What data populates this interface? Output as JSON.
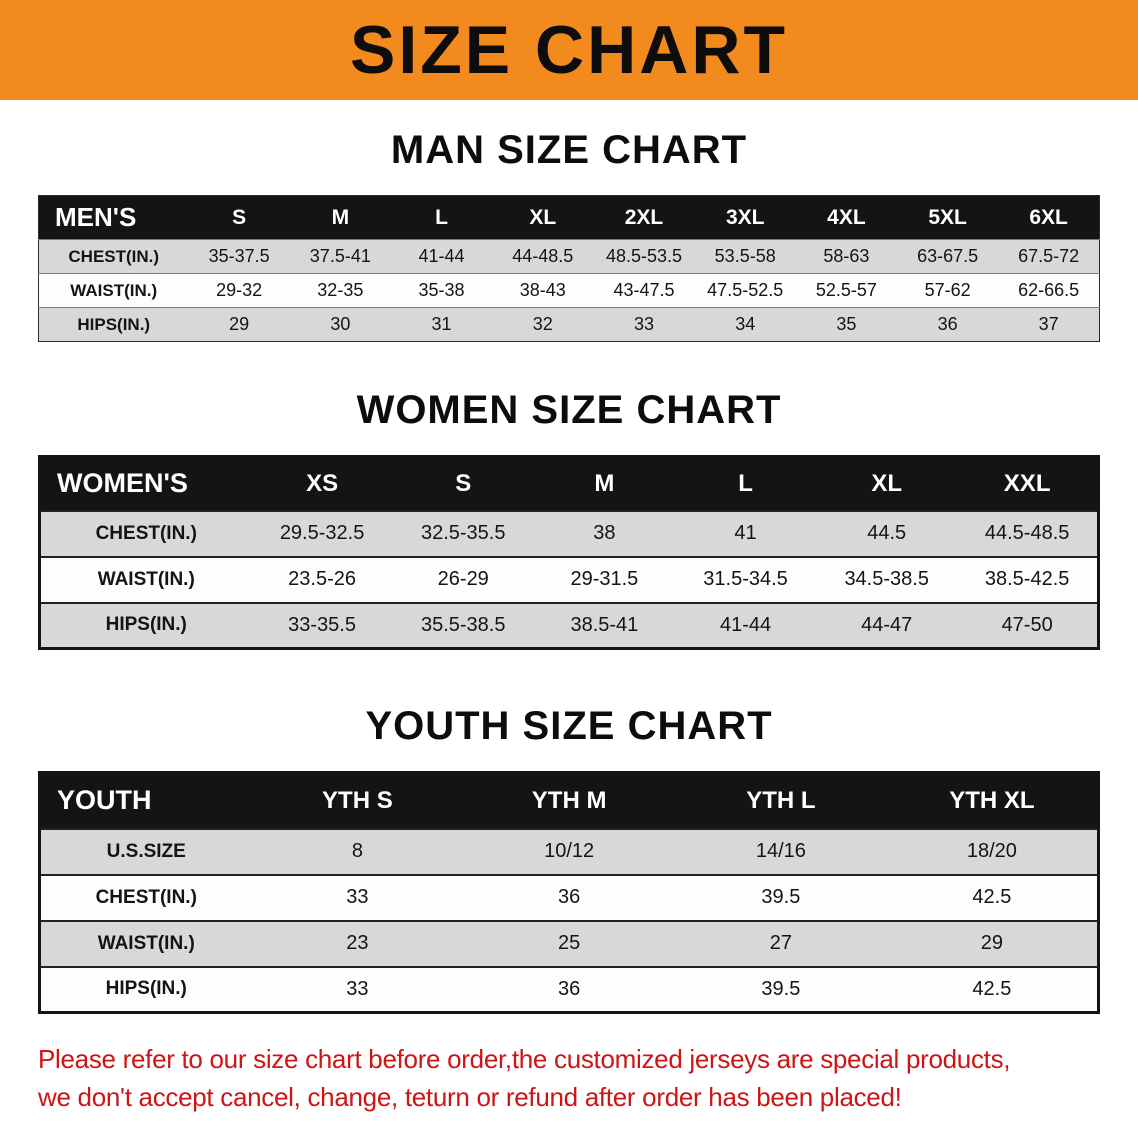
{
  "banner": {
    "title": "SIZE CHART"
  },
  "sections": [
    {
      "heading": "MAN SIZE CHART",
      "table": {
        "header": [
          "MEN'S",
          "S",
          "M",
          "L",
          "XL",
          "2XL",
          "3XL",
          "4XL",
          "5XL",
          "6XL"
        ],
        "rows": [
          [
            "CHEST(IN.)",
            "35-37.5",
            "37.5-41",
            "41-44",
            "44-48.5",
            "48.5-53.5",
            "53.5-58",
            "58-63",
            "63-67.5",
            "67.5-72"
          ],
          [
            "WAIST(IN.)",
            "29-32",
            "32-35",
            "35-38",
            "38-43",
            "43-47.5",
            "47.5-52.5",
            "52.5-57",
            "57-62",
            "62-66.5"
          ],
          [
            "HIPS(IN.)",
            "29",
            "30",
            "31",
            "32",
            "33",
            "34",
            "35",
            "36",
            "37"
          ]
        ]
      }
    },
    {
      "heading": "WOMEN SIZE CHART",
      "table": {
        "header": [
          "WOMEN'S",
          "XS",
          "S",
          "M",
          "L",
          "XL",
          "XXL"
        ],
        "rows": [
          [
            "CHEST(IN.)",
            "29.5-32.5",
            "32.5-35.5",
            "38",
            "41",
            "44.5",
            "44.5-48.5"
          ],
          [
            "WAIST(IN.)",
            "23.5-26",
            "26-29",
            "29-31.5",
            "31.5-34.5",
            "34.5-38.5",
            "38.5-42.5"
          ],
          [
            "HIPS(IN.)",
            "33-35.5",
            "35.5-38.5",
            "38.5-41",
            "41-44",
            "44-47",
            "47-50"
          ]
        ]
      }
    },
    {
      "heading": "YOUTH SIZE CHART",
      "table": {
        "header": [
          "YOUTH",
          "YTH S",
          "YTH M",
          "YTH L",
          "YTH XL"
        ],
        "rows": [
          [
            "U.S.SIZE",
            "8",
            "10/12",
            "14/16",
            "18/20"
          ],
          [
            "CHEST(IN.)",
            "33",
            "36",
            "39.5",
            "42.5"
          ],
          [
            "WAIST(IN.)",
            "23",
            "25",
            "27",
            "29"
          ],
          [
            "HIPS(IN.)",
            "33",
            "36",
            "39.5",
            "42.5"
          ]
        ]
      }
    }
  ],
  "footer": {
    "line1": "Please refer to our size chart before order,the customized jerseys are special products,",
    "line2": "we don't accept cancel, change, teturn or refund after order has been placed!"
  },
  "colors": {
    "banner_orange": "#f28a1e",
    "header_black": "#141414",
    "row_gray": "#d8d8d8",
    "disclaimer_red": "#ce1414"
  }
}
